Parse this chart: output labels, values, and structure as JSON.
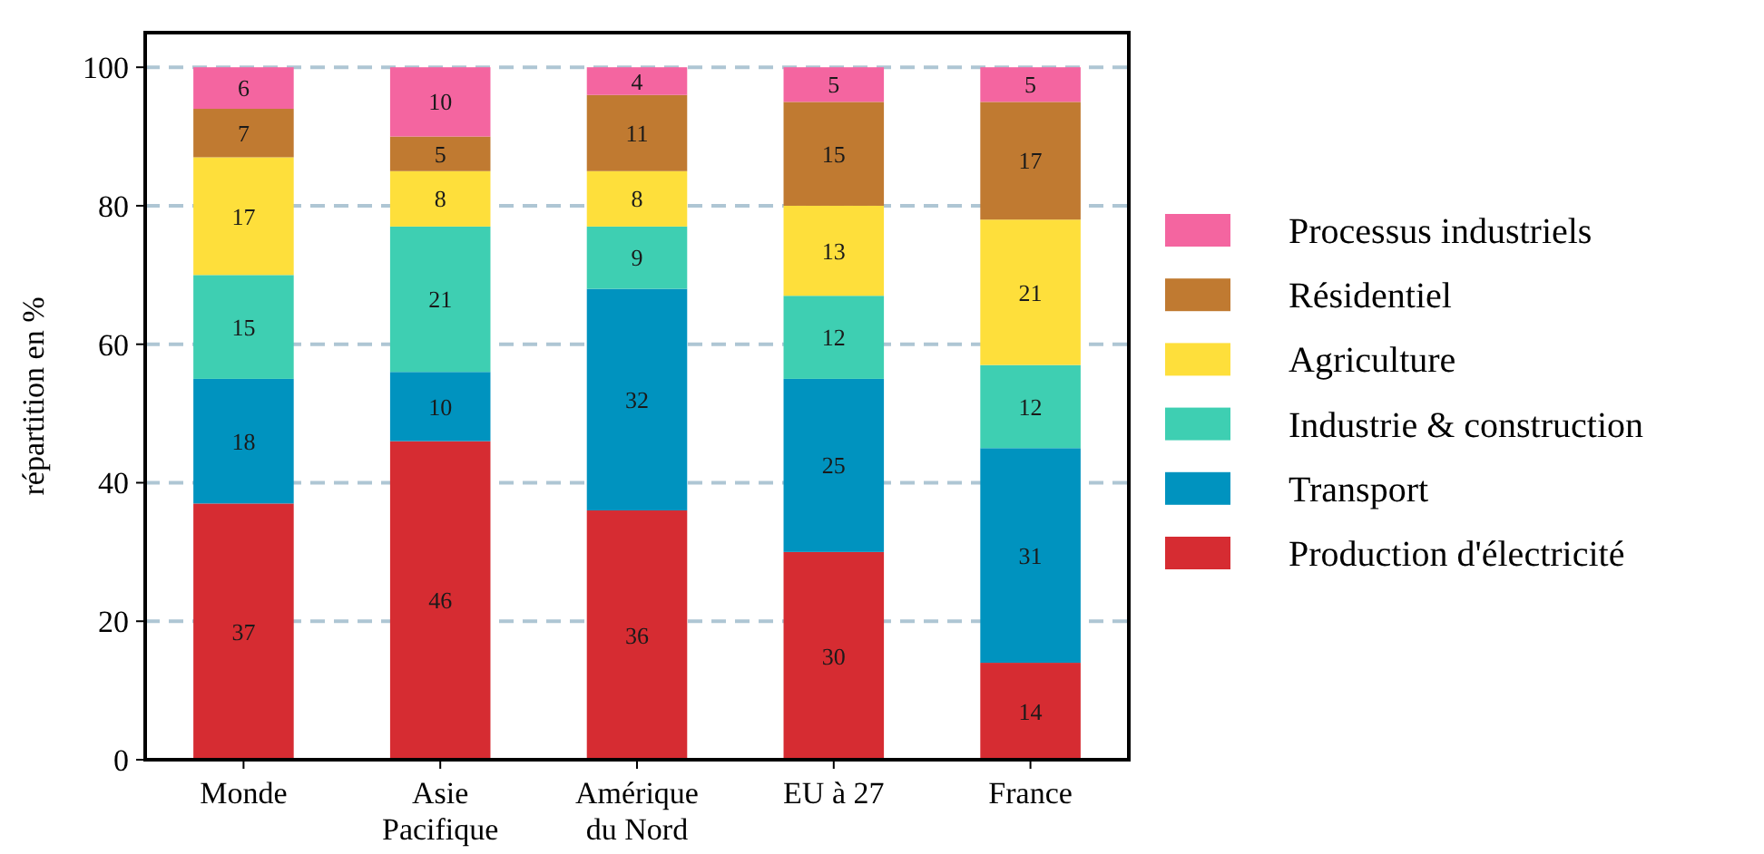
{
  "chart_data": {
    "type": "bar",
    "stacked": true,
    "ylabel": "répartition en %",
    "categories": [
      "Monde",
      "Asie Pacifique",
      "Amérique du Nord",
      "EU à 27",
      "France"
    ],
    "series": [
      {
        "name": "Production d'électricité",
        "color": "#d62c32",
        "values": [
          37,
          46,
          36,
          30,
          14
        ]
      },
      {
        "name": "Transport",
        "color": "#0093bf",
        "values": [
          18,
          10,
          32,
          25,
          31
        ]
      },
      {
        "name": "Industrie & construction",
        "color": "#3ecfb2",
        "values": [
          15,
          21,
          9,
          12,
          12
        ]
      },
      {
        "name": "Agriculture",
        "color": "#fedf3b",
        "values": [
          17,
          8,
          8,
          13,
          21
        ]
      },
      {
        "name": "Résidentiel",
        "color": "#c07a31",
        "values": [
          7,
          5,
          11,
          15,
          17
        ]
      },
      {
        "name": "Processus industriels",
        "color": "#f465a0",
        "values": [
          6,
          10,
          4,
          5,
          5
        ]
      }
    ],
    "ylim": [
      0,
      105
    ],
    "yticks": [
      0,
      20,
      40,
      60,
      80,
      100
    ],
    "grid": "y",
    "legend": "right",
    "data_labels": true
  }
}
